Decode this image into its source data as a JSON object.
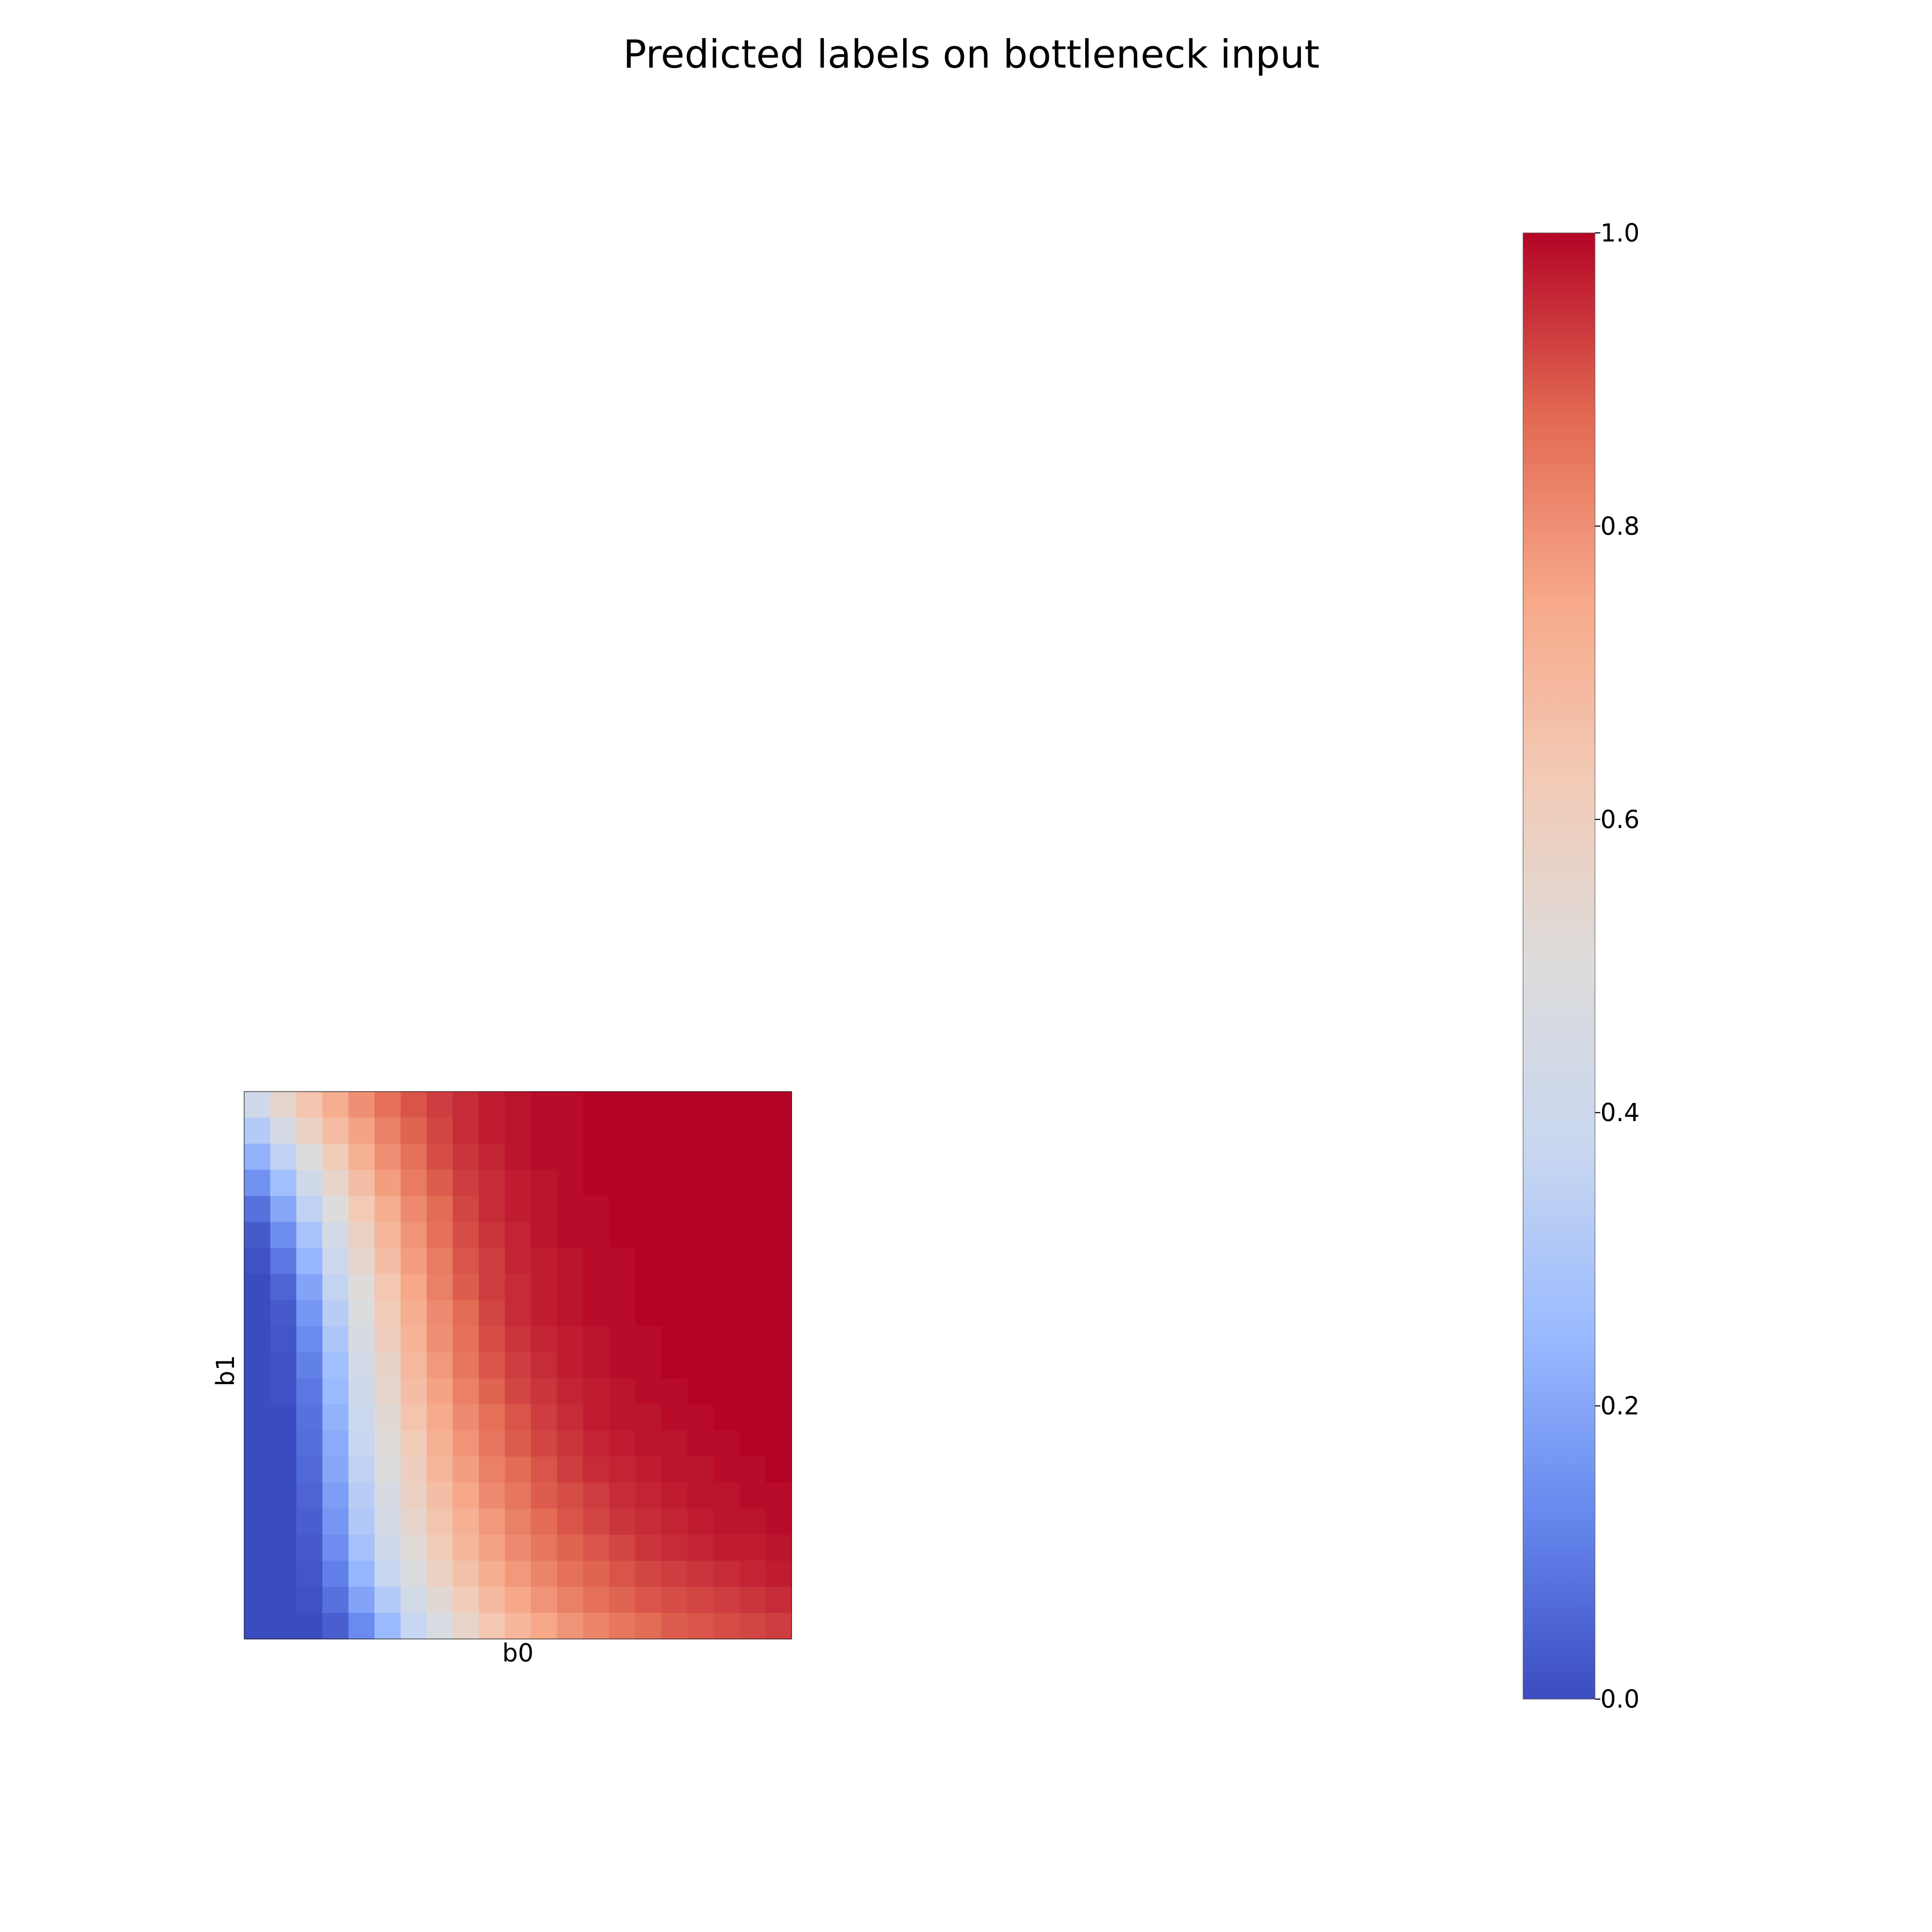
{
  "chart_data": {
    "type": "heatmap",
    "title": "Predicted labels on bottleneck input",
    "xlabel": "b0",
    "ylabel": "b1",
    "colormap": "coolwarm",
    "colormap_stops": [
      "#3b4cc0",
      "#6788ee",
      "#9abbff",
      "#c9d7f0",
      "#dddcdc",
      "#f2cbb7",
      "#f7a889",
      "#e26952",
      "#b40426"
    ],
    "grid": false,
    "colorbar": {
      "min": 0.0,
      "max": 1.0,
      "ticks": [
        "0.0",
        "0.2",
        "0.4",
        "0.6",
        "0.8",
        "1.0"
      ]
    },
    "row_order": "top-to-bottom",
    "values": [
      [
        0.42,
        0.55,
        0.65,
        0.73,
        0.8,
        0.86,
        0.9,
        0.93,
        0.95,
        0.97,
        0.98,
        0.99,
        0.99,
        1.0,
        1.0,
        1.0,
        1.0,
        1.0,
        1.0,
        1.0,
        1.0
      ],
      [
        0.32,
        0.45,
        0.58,
        0.68,
        0.76,
        0.83,
        0.88,
        0.92,
        0.95,
        0.97,
        0.98,
        0.99,
        0.99,
        1.0,
        1.0,
        1.0,
        1.0,
        1.0,
        1.0,
        1.0,
        1.0
      ],
      [
        0.23,
        0.35,
        0.5,
        0.62,
        0.72,
        0.8,
        0.86,
        0.91,
        0.94,
        0.96,
        0.98,
        0.99,
        0.99,
        1.0,
        1.0,
        1.0,
        1.0,
        1.0,
        1.0,
        1.0,
        1.0
      ],
      [
        0.15,
        0.27,
        0.42,
        0.56,
        0.67,
        0.77,
        0.84,
        0.89,
        0.93,
        0.95,
        0.97,
        0.98,
        0.99,
        1.0,
        1.0,
        1.0,
        1.0,
        1.0,
        1.0,
        1.0,
        1.0
      ],
      [
        0.08,
        0.2,
        0.35,
        0.5,
        0.63,
        0.73,
        0.81,
        0.87,
        0.92,
        0.95,
        0.97,
        0.98,
        0.99,
        0.99,
        1.0,
        1.0,
        1.0,
        1.0,
        1.0,
        1.0,
        1.0
      ],
      [
        0.03,
        0.14,
        0.29,
        0.44,
        0.58,
        0.7,
        0.79,
        0.86,
        0.91,
        0.94,
        0.96,
        0.98,
        0.99,
        0.99,
        1.0,
        1.0,
        1.0,
        1.0,
        1.0,
        1.0,
        1.0
      ],
      [
        0.01,
        0.09,
        0.24,
        0.4,
        0.55,
        0.67,
        0.77,
        0.84,
        0.9,
        0.93,
        0.96,
        0.97,
        0.98,
        0.99,
        0.99,
        1.0,
        1.0,
        1.0,
        1.0,
        1.0,
        1.0
      ],
      [
        0.0,
        0.05,
        0.19,
        0.36,
        0.51,
        0.64,
        0.75,
        0.83,
        0.89,
        0.93,
        0.95,
        0.97,
        0.98,
        0.99,
        0.99,
        1.0,
        1.0,
        1.0,
        1.0,
        1.0,
        1.0
      ],
      [
        0.0,
        0.03,
        0.16,
        0.33,
        0.49,
        0.62,
        0.73,
        0.81,
        0.87,
        0.92,
        0.95,
        0.97,
        0.98,
        0.99,
        0.99,
        1.0,
        1.0,
        1.0,
        1.0,
        1.0,
        1.0
      ],
      [
        0.0,
        0.02,
        0.13,
        0.3,
        0.46,
        0.6,
        0.71,
        0.8,
        0.86,
        0.91,
        0.94,
        0.96,
        0.97,
        0.98,
        0.99,
        0.99,
        1.0,
        1.0,
        1.0,
        1.0,
        1.0
      ],
      [
        0.0,
        0.01,
        0.11,
        0.27,
        0.43,
        0.57,
        0.69,
        0.78,
        0.85,
        0.9,
        0.93,
        0.95,
        0.97,
        0.98,
        0.99,
        0.99,
        1.0,
        1.0,
        1.0,
        1.0,
        1.0
      ],
      [
        0.0,
        0.01,
        0.09,
        0.25,
        0.41,
        0.55,
        0.67,
        0.76,
        0.83,
        0.88,
        0.92,
        0.94,
        0.96,
        0.97,
        0.98,
        0.99,
        0.99,
        1.0,
        1.0,
        1.0,
        1.0
      ],
      [
        0.0,
        0.0,
        0.08,
        0.23,
        0.39,
        0.53,
        0.65,
        0.74,
        0.81,
        0.86,
        0.9,
        0.93,
        0.95,
        0.97,
        0.98,
        0.98,
        0.99,
        0.99,
        1.0,
        1.0,
        1.0
      ],
      [
        0.0,
        0.0,
        0.07,
        0.21,
        0.37,
        0.51,
        0.62,
        0.72,
        0.79,
        0.85,
        0.89,
        0.92,
        0.94,
        0.96,
        0.97,
        0.98,
        0.98,
        0.99,
        0.99,
        1.0,
        1.0
      ],
      [
        0.0,
        0.0,
        0.06,
        0.2,
        0.35,
        0.49,
        0.6,
        0.7,
        0.77,
        0.83,
        0.87,
        0.9,
        0.93,
        0.95,
        0.96,
        0.97,
        0.98,
        0.98,
        0.99,
        0.99,
        1.0
      ],
      [
        0.0,
        0.0,
        0.05,
        0.18,
        0.33,
        0.46,
        0.58,
        0.67,
        0.75,
        0.81,
        0.85,
        0.89,
        0.91,
        0.93,
        0.95,
        0.96,
        0.97,
        0.98,
        0.98,
        0.99,
        0.99
      ],
      [
        0.0,
        0.0,
        0.04,
        0.16,
        0.31,
        0.44,
        0.55,
        0.65,
        0.72,
        0.78,
        0.83,
        0.87,
        0.9,
        0.92,
        0.94,
        0.95,
        0.96,
        0.97,
        0.98,
        0.98,
        0.99
      ],
      [
        0.0,
        0.0,
        0.03,
        0.14,
        0.28,
        0.41,
        0.52,
        0.62,
        0.7,
        0.76,
        0.81,
        0.85,
        0.88,
        0.9,
        0.92,
        0.94,
        0.95,
        0.96,
        0.97,
        0.97,
        0.98
      ],
      [
        0.0,
        0.0,
        0.02,
        0.11,
        0.24,
        0.37,
        0.48,
        0.58,
        0.66,
        0.73,
        0.78,
        0.82,
        0.86,
        0.88,
        0.9,
        0.92,
        0.93,
        0.94,
        0.95,
        0.96,
        0.97
      ],
      [
        0.0,
        0.0,
        0.01,
        0.08,
        0.19,
        0.32,
        0.43,
        0.53,
        0.62,
        0.69,
        0.75,
        0.79,
        0.83,
        0.86,
        0.88,
        0.9,
        0.91,
        0.92,
        0.93,
        0.94,
        0.95
      ],
      [
        0.0,
        0.0,
        0.0,
        0.04,
        0.13,
        0.25,
        0.37,
        0.47,
        0.56,
        0.64,
        0.7,
        0.75,
        0.79,
        0.82,
        0.85,
        0.87,
        0.89,
        0.9,
        0.91,
        0.92,
        0.93
      ]
    ]
  }
}
